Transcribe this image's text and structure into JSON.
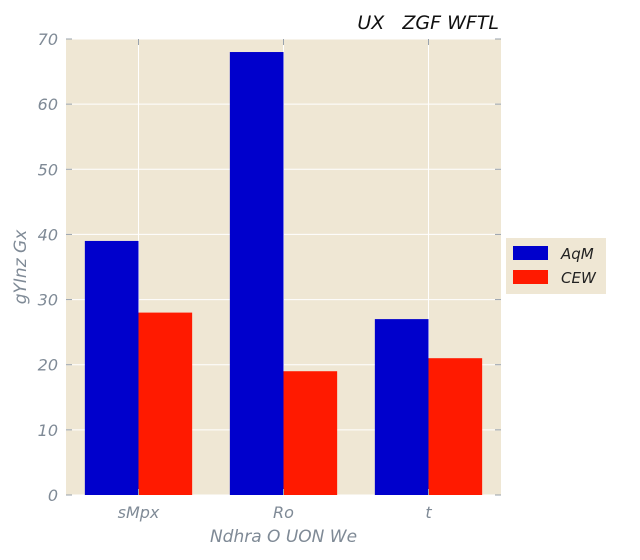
{
  "chart_data": {
    "type": "bar",
    "title": "UX   ZGF WFTL",
    "xlabel": "Ndhra O UON We",
    "ylabel": "gYInz Gx",
    "categories": [
      "sMpx",
      "Ro",
      "t"
    ],
    "series": [
      {
        "name": "AqM",
        "values": [
          39,
          68,
          27
        ],
        "color": "#0000cc"
      },
      {
        "name": "CEW",
        "values": [
          28,
          19,
          21
        ],
        "color": "#ff1a00"
      }
    ],
    "ylim": [
      0,
      70
    ],
    "yticks": [
      "0",
      "10",
      "20",
      "30",
      "40",
      "50",
      "60",
      "70"
    ],
    "grid": true,
    "legend_position": "right-outside",
    "plot_background": "#efe7d4"
  }
}
